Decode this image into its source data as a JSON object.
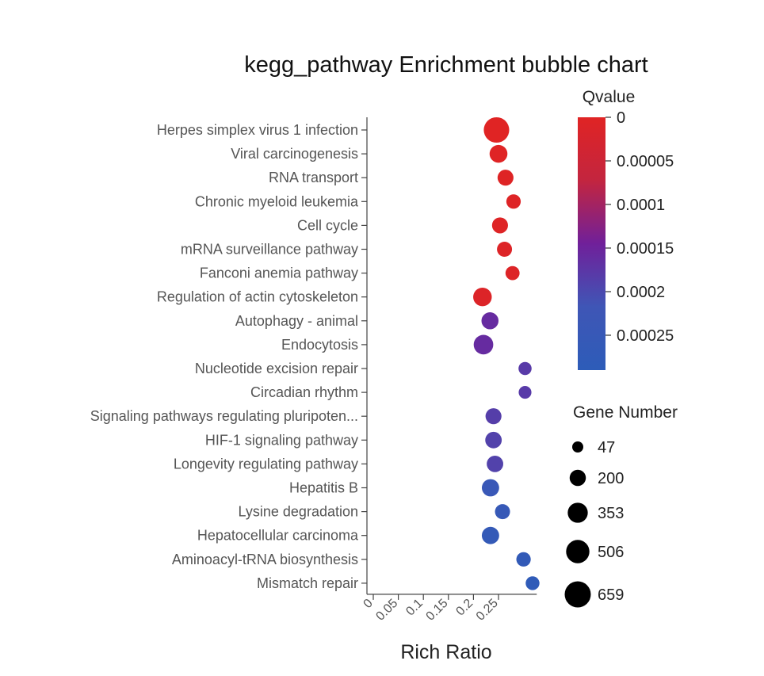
{
  "chart_data": {
    "type": "scatter",
    "title": "kegg_pathway Enrichment bubble chart",
    "xlabel": "Rich Ratio",
    "ylabel": "",
    "xlim": [
      0,
      0.32
    ],
    "x_ticks": [
      {
        "value": 0,
        "label": "0"
      },
      {
        "value": 0.05,
        "label": "0.05"
      },
      {
        "value": 0.1,
        "label": "0.1"
      },
      {
        "value": 0.15,
        "label": "0.15"
      },
      {
        "value": 0.2,
        "label": "0.2"
      },
      {
        "value": 0.25,
        "label": "0.25"
      }
    ],
    "categories": [
      "Herpes simplex virus 1 infection",
      "Viral carcinogenesis",
      "RNA transport",
      "Chronic myeloid leukemia",
      "Cell cycle",
      "mRNA surveillance pathway",
      "Fanconi anemia pathway",
      "Regulation of actin cytoskeleton",
      "Autophagy - animal",
      "Endocytosis",
      "Nucleotide excision repair",
      "Circadian rhythm",
      "Signaling pathways regulating pluripoten...",
      "HIF-1 signaling pathway",
      "Longevity regulating pathway",
      "Hepatitis B",
      "Lysine degradation",
      "Hepatocellular carcinoma",
      "Aminoacyl-tRNA biosynthesis",
      "Mismatch repair"
    ],
    "x": [
      0.246,
      0.25,
      0.264,
      0.28,
      0.253,
      0.262,
      0.278,
      0.218,
      0.233,
      0.22,
      0.303,
      0.303,
      0.24,
      0.24,
      0.243,
      0.234,
      0.258,
      0.234,
      0.3,
      0.318
    ],
    "qvalue": [
      1e-06,
      3e-06,
      4e-06,
      6e-06,
      6e-06,
      8e-06,
      8e-06,
      1e-05,
      0.00016,
      0.00016,
      0.00018,
      0.00018,
      0.000185,
      0.00019,
      0.00019,
      0.00024,
      0.00025,
      0.00026,
      0.00027,
      0.00028
    ],
    "gene_number": [
      620,
      260,
      190,
      140,
      190,
      160,
      130,
      290,
      230,
      330,
      100,
      90,
      190,
      210,
      210,
      240,
      160,
      240,
      140,
      120
    ],
    "color_legend": {
      "title": "Qvalue",
      "range": [
        0,
        0.00029
      ],
      "ticks": [
        {
          "value": 0,
          "label": "0"
        },
        {
          "value": 5e-05,
          "label": "0.00005"
        },
        {
          "value": 0.0001,
          "label": "0.0001"
        },
        {
          "value": 0.00015,
          "label": "0.00015"
        },
        {
          "value": 0.0002,
          "label": "0.0002"
        },
        {
          "value": 0.00025,
          "label": "0.00025"
        }
      ],
      "colors": [
        "#e02424",
        "#c3253f",
        "#70209a",
        "#3f56b6",
        "#2d5cb8"
      ]
    },
    "size_legend": {
      "title": "Gene Number",
      "values": [
        47,
        200,
        353,
        506,
        659
      ],
      "labels": [
        "47",
        "200",
        "353",
        "506",
        "659"
      ]
    },
    "grid": false
  }
}
